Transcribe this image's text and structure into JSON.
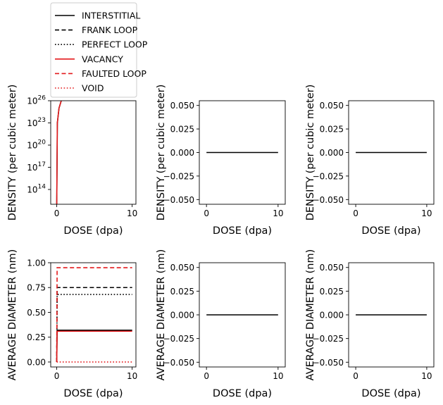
{
  "legend": {
    "entries": [
      {
        "label": "INTERSTITIAL",
        "color": "#000000",
        "style": "solid"
      },
      {
        "label": "FRANK LOOP",
        "color": "#000000",
        "style": "dashed"
      },
      {
        "label": "PERFECT LOOP",
        "color": "#000000",
        "style": "dotted"
      },
      {
        "label": "VACANCY",
        "color": "#e41a1c",
        "style": "solid"
      },
      {
        "label": "FAULTED LOOP",
        "color": "#e41a1c",
        "style": "dashed"
      },
      {
        "label": "VOID",
        "color": "#e41a1c",
        "style": "dotted"
      }
    ]
  },
  "chart_data": [
    {
      "type": "line",
      "title": "",
      "xlabel": "DOSE (dpa)",
      "ylabel": "DENSITY (per cubic meter)",
      "xlim": [
        -0.8,
        10.5
      ],
      "yscale": "log",
      "ylim": [
        1000000000000.0,
        1e+26
      ],
      "xticks": [
        {
          "v": 0,
          "label": "0"
        },
        {
          "v": 10,
          "label": "10"
        }
      ],
      "yticks": [
        {
          "v": 100000000000000.0,
          "base": "10",
          "exp": "14"
        },
        {
          "v": 1e+17,
          "base": "10",
          "exp": "17"
        },
        {
          "v": 1e+20,
          "base": "10",
          "exp": "20"
        },
        {
          "v": 1e+23,
          "base": "10",
          "exp": "23"
        },
        {
          "v": 1e+26,
          "base": "10",
          "exp": "26"
        }
      ],
      "series": [
        {
          "legend": 0,
          "points": [
            [
              0,
              1000000000000.0
            ],
            [
              0.08,
              1e+23
            ],
            [
              0.3,
              1e+25
            ],
            [
              0.6,
              1e+26
            ]
          ]
        },
        {
          "legend": 3,
          "points": [
            [
              0,
              1000000000000.0
            ],
            [
              0.08,
              1e+23
            ],
            [
              0.3,
              1e+25
            ],
            [
              0.6,
              1e+26
            ]
          ]
        }
      ]
    },
    {
      "type": "line",
      "title": "",
      "xlabel": "DOSE (dpa)",
      "ylabel": "DENSITY (per cubic meter)",
      "xlim": [
        -1,
        11
      ],
      "ylim": [
        -0.055,
        0.055
      ],
      "xticks": [
        {
          "v": 0,
          "label": "0"
        },
        {
          "v": 10,
          "label": "10"
        }
      ],
      "yticks": [
        {
          "v": 0.05,
          "label": "0.050"
        },
        {
          "v": 0.025,
          "label": "0.025"
        },
        {
          "v": 0,
          "label": "0.000"
        },
        {
          "v": -0.025,
          "label": "−0.025"
        },
        {
          "v": -0.05,
          "label": "−0.050"
        }
      ],
      "series": [
        {
          "legend": 0,
          "points": [
            [
              0,
              0
            ],
            [
              10,
              0
            ]
          ]
        }
      ]
    },
    {
      "type": "line",
      "title": "",
      "xlabel": "DOSE (dpa)",
      "ylabel": "DENSITY (per cubic meter)",
      "xlim": [
        -1,
        11
      ],
      "ylim": [
        -0.055,
        0.055
      ],
      "xticks": [
        {
          "v": 0,
          "label": "0"
        },
        {
          "v": 10,
          "label": "10"
        }
      ],
      "yticks": [
        {
          "v": 0.05,
          "label": "0.050"
        },
        {
          "v": 0.025,
          "label": "0.025"
        },
        {
          "v": 0,
          "label": "0.000"
        },
        {
          "v": -0.025,
          "label": "−0.025"
        },
        {
          "v": -0.05,
          "label": "−0.050"
        }
      ],
      "series": [
        {
          "legend": 0,
          "points": [
            [
              0,
              0
            ],
            [
              10,
              0
            ]
          ]
        }
      ]
    },
    {
      "type": "line",
      "title": "",
      "xlabel": "DOSE (dpa)",
      "ylabel": "AVERAGE DIAMETER (nm)",
      "xlim": [
        -0.8,
        10.5
      ],
      "ylim": [
        -0.05,
        1.0
      ],
      "xticks": [
        {
          "v": 0,
          "label": "0"
        },
        {
          "v": 10,
          "label": "10"
        }
      ],
      "yticks": [
        {
          "v": 0,
          "label": "0.00"
        },
        {
          "v": 0.25,
          "label": "0.25"
        },
        {
          "v": 0.5,
          "label": "0.50"
        },
        {
          "v": 0.75,
          "label": "0.75"
        },
        {
          "v": 1.0,
          "label": "1.00"
        }
      ],
      "series": [
        {
          "legend": 0,
          "points": [
            [
              0,
              0
            ],
            [
              0.05,
              0.32
            ],
            [
              10,
              0.32
            ]
          ]
        },
        {
          "legend": 1,
          "points": [
            [
              0,
              0
            ],
            [
              0.05,
              0.75
            ],
            [
              10,
              0.75
            ]
          ]
        },
        {
          "legend": 2,
          "points": [
            [
              0,
              0
            ],
            [
              0.05,
              0.68
            ],
            [
              10,
              0.68
            ]
          ]
        },
        {
          "legend": 3,
          "points": [
            [
              0,
              0
            ],
            [
              0.05,
              0.31
            ],
            [
              10,
              0.31
            ]
          ]
        },
        {
          "legend": 4,
          "points": [
            [
              0,
              0
            ],
            [
              0.05,
              0.95
            ],
            [
              10,
              0.95
            ]
          ]
        },
        {
          "legend": 5,
          "points": [
            [
              0,
              0
            ],
            [
              10,
              0
            ]
          ]
        }
      ]
    },
    {
      "type": "line",
      "title": "",
      "xlabel": "DOSE (dpa)",
      "ylabel": "AVERAGE DIAMETER (nm)",
      "xlim": [
        -1,
        11
      ],
      "ylim": [
        -0.055,
        0.055
      ],
      "xticks": [
        {
          "v": 0,
          "label": "0"
        },
        {
          "v": 10,
          "label": "10"
        }
      ],
      "yticks": [
        {
          "v": 0.05,
          "label": "0.050"
        },
        {
          "v": 0.025,
          "label": "0.025"
        },
        {
          "v": 0,
          "label": "0.000"
        },
        {
          "v": -0.025,
          "label": "−0.025"
        },
        {
          "v": -0.05,
          "label": "−0.050"
        }
      ],
      "series": [
        {
          "legend": 0,
          "points": [
            [
              0,
              0
            ],
            [
              10,
              0
            ]
          ]
        }
      ]
    },
    {
      "type": "line",
      "title": "",
      "xlabel": "DOSE (dpa)",
      "ylabel": "AVERAGE DIAMETER (nm)",
      "xlim": [
        -1,
        11
      ],
      "ylim": [
        -0.055,
        0.055
      ],
      "xticks": [
        {
          "v": 0,
          "label": "0"
        },
        {
          "v": 10,
          "label": "10"
        }
      ],
      "yticks": [
        {
          "v": 0.05,
          "label": "0.050"
        },
        {
          "v": 0.025,
          "label": "0.025"
        },
        {
          "v": 0,
          "label": "0.000"
        },
        {
          "v": -0.025,
          "label": "−0.025"
        },
        {
          "v": -0.05,
          "label": "−0.050"
        }
      ],
      "series": [
        {
          "legend": 0,
          "points": [
            [
              0,
              0
            ],
            [
              10,
              0
            ]
          ]
        }
      ]
    }
  ]
}
